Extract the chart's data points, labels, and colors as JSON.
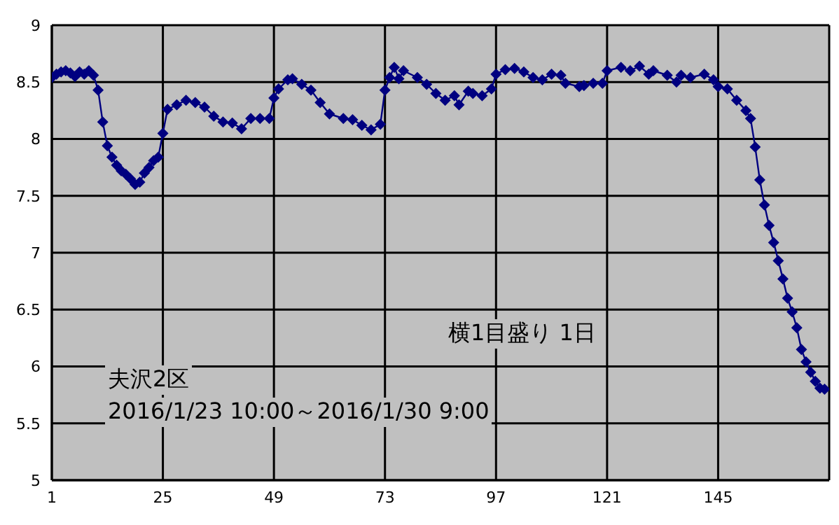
{
  "chart_data": {
    "type": "line",
    "x": [
      1,
      2,
      3,
      4,
      5,
      6,
      7,
      8,
      9,
      10,
      11,
      12,
      13,
      14,
      15,
      16,
      17,
      18,
      19,
      20,
      21,
      22,
      23,
      24,
      25,
      26,
      28,
      30,
      32,
      34,
      36,
      38,
      40,
      42,
      44,
      46,
      48,
      49,
      50,
      52,
      53,
      55,
      57,
      59,
      61,
      64,
      66,
      68,
      70,
      72,
      73,
      74,
      75,
      76,
      77,
      80,
      82,
      84,
      86,
      88,
      89,
      91,
      92,
      94,
      96,
      97,
      99,
      101,
      103,
      105,
      107,
      109,
      111,
      112,
      115,
      116,
      118,
      120,
      121,
      124,
      126,
      128,
      130,
      131,
      134,
      136,
      137,
      139,
      142,
      144,
      145,
      147,
      149,
      151,
      152,
      153,
      154,
      155,
      156,
      157,
      158,
      159,
      160,
      161,
      162,
      163,
      164,
      165,
      166,
      167,
      168
    ],
    "series": [
      {
        "color": "#000080",
        "values": [
          8.54,
          8.57,
          8.59,
          8.6,
          8.58,
          8.55,
          8.59,
          8.57,
          8.6,
          8.56,
          8.43,
          8.15,
          7.94,
          7.84,
          7.77,
          7.72,
          7.69,
          7.65,
          7.6,
          7.62,
          7.7,
          7.75,
          7.81,
          7.84,
          8.05,
          8.26,
          8.3,
          8.34,
          8.32,
          8.28,
          8.2,
          8.15,
          8.14,
          8.09,
          8.18,
          8.18,
          8.18,
          8.36,
          8.44,
          8.52,
          8.53,
          8.48,
          8.43,
          8.32,
          8.22,
          8.18,
          8.17,
          8.12,
          8.08,
          8.13,
          8.43,
          8.54,
          8.63,
          8.53,
          8.6,
          8.54,
          8.48,
          8.4,
          8.34,
          8.38,
          8.3,
          8.42,
          8.4,
          8.38,
          8.44,
          8.57,
          8.61,
          8.62,
          8.59,
          8.54,
          8.52,
          8.57,
          8.56,
          8.49,
          8.46,
          8.47,
          8.49,
          8.49,
          8.6,
          8.63,
          8.6,
          8.64,
          8.57,
          8.6,
          8.56,
          8.5,
          8.56,
          8.54,
          8.57,
          8.52,
          8.46,
          8.44,
          8.34,
          8.25,
          8.18,
          7.93,
          7.64,
          7.42,
          7.24,
          7.09,
          6.93,
          6.77,
          6.6,
          6.48,
          6.34,
          6.15,
          6.04,
          5.95,
          5.87,
          5.81,
          5.8
        ]
      }
    ],
    "xlim": [
      1,
      169
    ],
    "xticks": [
      1,
      25,
      49,
      73,
      97,
      121,
      145,
      {
        "value": 169,
        "label": null
      }
    ],
    "ylim": [
      5,
      9
    ],
    "yticks": [
      5,
      5.5,
      6,
      6.5,
      7,
      7.5,
      8,
      8.5,
      9
    ],
    "grid": true,
    "marker": "diamond",
    "line_style": "solid",
    "annotations": [
      "横1目盛り 1日",
      "夫沢2区",
      "2016/1/23 10:00～2016/1/30 9:00"
    ]
  }
}
